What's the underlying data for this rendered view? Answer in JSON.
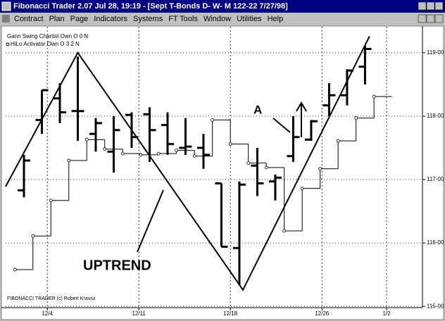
{
  "window": {
    "title": "Fibonacci Trader 2.07 Jul 28, 19:19 - [Sept T-Bonds D- W- M  122-22 7/27/98]",
    "menu": [
      "Contract",
      "Plan",
      "Page",
      "Indicators",
      "Systems",
      "FT Tools",
      "Window",
      "Utilities",
      "Help"
    ]
  },
  "chart_data": {
    "type": "ohlc",
    "footer": "FIBONACCI TRADER (c) Robert Krausz",
    "annotations": [
      "A",
      "UPTREND"
    ],
    "bars": {
      "x": [
        0,
        1,
        2,
        3,
        4,
        5,
        6,
        7,
        8,
        9,
        10,
        11,
        12,
        13,
        14,
        15,
        16,
        17,
        18,
        19
      ],
      "open": [
        116.83,
        117.94,
        118.28,
        118.08,
        117.72,
        117.44,
        118.02,
        118.03,
        117.86,
        117.5,
        117.5,
        116.94,
        115.92,
        117.22,
        116.97,
        117.37,
        117.63,
        118.17,
        118.33,
        118.78
      ],
      "high": [
        117.39,
        118.41,
        118.52,
        118.94,
        117.97,
        118.0,
        118.06,
        118.14,
        118.06,
        117.97,
        117.72,
        116.94,
        116.97,
        117.5,
        117.08,
        118.0,
        117.94,
        118.52,
        118.74,
        119.11
      ],
      "low": [
        116.72,
        117.72,
        117.89,
        117.61,
        117.44,
        117.11,
        117.5,
        117.28,
        117.39,
        117.39,
        117.17,
        115.94,
        115.33,
        116.74,
        116.67,
        117.28,
        117.61,
        118.0,
        118.17,
        118.5
      ],
      "close": [
        117.3,
        118.41,
        118.06,
        118.08,
        117.89,
        117.78,
        117.67,
        117.78,
        117.56,
        117.52,
        117.39,
        115.94,
        116.92,
        116.94,
        117.03,
        117.67,
        117.92,
        118.33,
        118.72,
        119.06
      ]
    },
    "series": [
      {
        "name": "Gann Swing Chartist Own O 0 N",
        "color": "#000000",
        "x": [
          -1.02,
          3,
          12.2,
          19.25
        ],
        "values": [
          116.89,
          119.0,
          115.26,
          119.26
        ]
      },
      {
        "name": "HiLo Activator Own O 3 2 N",
        "color": "#000000",
        "x": [
          0,
          1,
          2,
          3,
          4,
          5,
          6,
          7,
          8,
          9,
          10,
          11,
          12,
          13,
          14,
          15,
          16,
          17,
          18,
          19,
          20
        ],
        "values": [
          115.58,
          116.11,
          116.67,
          117.3,
          117.63,
          117.48,
          117.41,
          117.39,
          117.41,
          117.46,
          117.37,
          117.94,
          117.56,
          117.26,
          117.19,
          116.19,
          116.86,
          117.17,
          117.61,
          117.97,
          118.31
        ]
      }
    ],
    "xlim": [
      -1.02,
      22.2
    ],
    "xticks": [
      {
        "value": 1.3,
        "label": "12/4"
      },
      {
        "value": 6.4,
        "label": "12/11"
      },
      {
        "value": 11.5,
        "label": "12/18"
      },
      {
        "value": 16.6,
        "label": "12/26"
      },
      {
        "value": 20.2,
        "label": "1/2"
      }
    ],
    "ylim": [
      114.98,
      119.41
    ],
    "yticks": [
      {
        "value": 115,
        "label": "115-00"
      },
      {
        "value": 116,
        "label": "116-00"
      },
      {
        "value": 117,
        "label": "117-00"
      },
      {
        "value": 118,
        "label": "118-00"
      },
      {
        "value": 119,
        "label": "119-00"
      }
    ],
    "grid": true
  }
}
